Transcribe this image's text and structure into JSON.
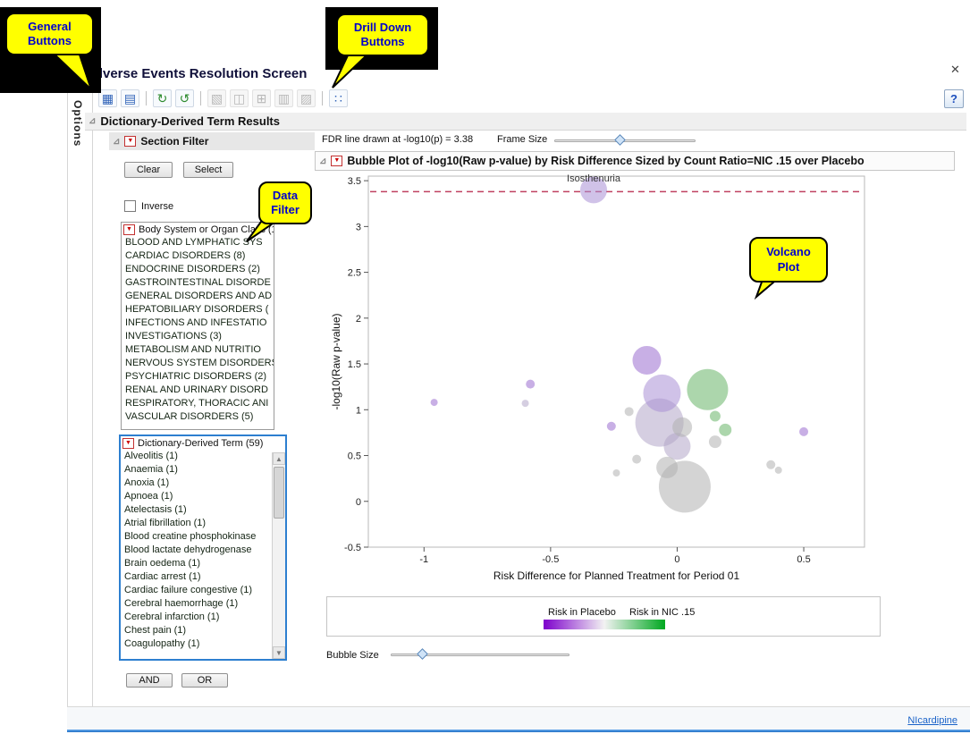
{
  "window": {
    "title": "Adverse Events Resolution Screen",
    "options_label": "Options",
    "status_link": "NIcardipine"
  },
  "icons": {
    "close": "✕",
    "expander": "▷",
    "disclosure": "⊿",
    "hotspot": "▼",
    "scroll_up": "▲",
    "scroll_down": "▼"
  },
  "toolbar": {
    "help_label": "?",
    "icons": [
      {
        "name": "data-table-icon",
        "glyph": "▦"
      },
      {
        "name": "report-icon",
        "glyph": "▤"
      },
      {
        "name": "update-icon",
        "glyph": "↻"
      },
      {
        "name": "rerun-icon",
        "glyph": "↺"
      },
      {
        "name": "drill-profile-icon",
        "glyph": "▧"
      },
      {
        "name": "drill-subjects-icon",
        "glyph": "◫"
      },
      {
        "name": "drill-table-icon",
        "glyph": "⊞"
      },
      {
        "name": "drill-notes-icon",
        "glyph": "▥"
      },
      {
        "name": "drill-report-icon",
        "glyph": "▨"
      },
      {
        "name": "scatter-plot-icon",
        "glyph": "∷"
      }
    ]
  },
  "callouts": {
    "general": {
      "line1": "General",
      "line2": "Buttons"
    },
    "drill": {
      "line1": "Drill Down",
      "line2": "Buttons"
    },
    "data_filter": {
      "line1": "Data",
      "line2": "Filter"
    },
    "volcano": {
      "line1": "Volcano",
      "line2": "Plot"
    }
  },
  "results": {
    "header": "Dictionary-Derived Term Results"
  },
  "filter": {
    "header": "Section Filter",
    "clear": "Clear",
    "select": "Select",
    "inverse": "Inverse",
    "and": "AND",
    "or": "OR",
    "body_system": {
      "header": "Body System or Organ Class (14)",
      "items": [
        "BLOOD AND LYMPHATIC SYS",
        "CARDIAC DISORDERS (8)",
        "ENDOCRINE DISORDERS (2)",
        "GASTROINTESTINAL DISORDE",
        "GENERAL DISORDERS AND AD",
        "HEPATOBILIARY DISORDERS (",
        "INFECTIONS AND INFESTATIO",
        "INVESTIGATIONS (3)",
        "METABOLISM AND NUTRITIO",
        "NERVOUS SYSTEM DISORDERS",
        "PSYCHIATRIC DISORDERS (2)",
        "RENAL AND URINARY DISORD",
        "RESPIRATORY, THORACIC ANI",
        "VASCULAR DISORDERS (5)"
      ]
    },
    "terms": {
      "header": "Dictionary-Derived Term (59)",
      "items": [
        "Alveolitis (1)",
        "Anaemia (1)",
        "Anoxia (1)",
        "Apnoea (1)",
        "Atelectasis (1)",
        "Atrial fibrillation (1)",
        "Blood creatine phosphokinase",
        "Blood lactate dehydrogenase",
        "Brain oedema (1)",
        "Cardiac arrest (1)",
        "Cardiac failure congestive (1)",
        "Cerebral haemorrhage (1)",
        "Cerebral infarction (1)",
        "Chest pain (1)",
        "Coagulopathy (1)"
      ]
    }
  },
  "plot_panel": {
    "fdr_text": "FDR line drawn at -log10(p) = 3.38",
    "frame_size_label": "Frame Size",
    "title": "Bubble Plot of -log10(Raw p-value) by Risk Difference Sized by Count Ratio=NIC .15 over Placebo",
    "bubble_size_label": "Bubble Size",
    "legend": {
      "left": "Risk in Placebo",
      "right": "Risk in NIC .15",
      "colors": [
        "#7d00cc",
        "#f2f2f2",
        "#00a820"
      ]
    }
  },
  "chart_data": {
    "type": "scatter",
    "title": "Bubble Plot of -log10(Raw p-value) by Risk Difference Sized by Count Ratio=NIC .15 over Placebo",
    "xlabel": "Risk Difference for Planned Treatment for Period 01",
    "ylabel": "-log10(Raw p-value)",
    "xlim": [
      -1.22,
      0.74
    ],
    "ylim": [
      -0.5,
      3.55
    ],
    "x_ticks": [
      -1,
      -0.5,
      0,
      0.5
    ],
    "y_ticks": [
      3.5,
      3,
      2.5,
      2,
      1.5,
      1,
      0.5,
      0,
      -0.5
    ],
    "grid": false,
    "fdr_line": {
      "y": 3.38,
      "color": "#c04060"
    },
    "annotation": {
      "text": "Isosthenuria",
      "x": -0.33,
      "y": 3.49
    },
    "points": [
      {
        "x": -0.33,
        "y": 3.4,
        "r": 15,
        "color": "#a98fd6"
      },
      {
        "x": -0.96,
        "y": 1.08,
        "r": 4,
        "color": "#9a6dd0"
      },
      {
        "x": -0.58,
        "y": 1.28,
        "r": 5,
        "color": "#9a6dd0"
      },
      {
        "x": -0.6,
        "y": 1.07,
        "r": 4,
        "color": "#b3a6c9"
      },
      {
        "x": -0.12,
        "y": 1.54,
        "r": 16,
        "color": "#9a6dd0"
      },
      {
        "x": -0.06,
        "y": 1.18,
        "r": 21,
        "color": "#a98fd6"
      },
      {
        "x": 0.12,
        "y": 1.22,
        "r": 23,
        "color": "#67b567"
      },
      {
        "x": -0.07,
        "y": 0.86,
        "r": 27,
        "color": "#b3a6c9"
      },
      {
        "x": 0.0,
        "y": 0.6,
        "r": 15,
        "color": "#b3a6c9"
      },
      {
        "x": 0.02,
        "y": 0.81,
        "r": 11,
        "color": "#b0b0b0"
      },
      {
        "x": -0.26,
        "y": 0.82,
        "r": 5,
        "color": "#9a6dd0"
      },
      {
        "x": -0.19,
        "y": 0.98,
        "r": 5,
        "color": "#b0b0b0"
      },
      {
        "x": 0.15,
        "y": 0.93,
        "r": 6,
        "color": "#67b567"
      },
      {
        "x": 0.19,
        "y": 0.78,
        "r": 7,
        "color": "#67b567"
      },
      {
        "x": 0.15,
        "y": 0.65,
        "r": 7,
        "color": "#b0b0b0"
      },
      {
        "x": 0.03,
        "y": 0.16,
        "r": 29,
        "color": "#b0b0b0"
      },
      {
        "x": -0.04,
        "y": 0.37,
        "r": 12,
        "color": "#b0b0b0"
      },
      {
        "x": -0.24,
        "y": 0.31,
        "r": 4,
        "color": "#b0b0b0"
      },
      {
        "x": -0.16,
        "y": 0.46,
        "r": 5,
        "color": "#b0b0b0"
      },
      {
        "x": 0.37,
        "y": 0.4,
        "r": 5,
        "color": "#b0b0b0"
      },
      {
        "x": 0.4,
        "y": 0.34,
        "r": 4,
        "color": "#b0b0b0"
      },
      {
        "x": 0.5,
        "y": 0.76,
        "r": 5,
        "color": "#9a6dd0"
      }
    ]
  }
}
